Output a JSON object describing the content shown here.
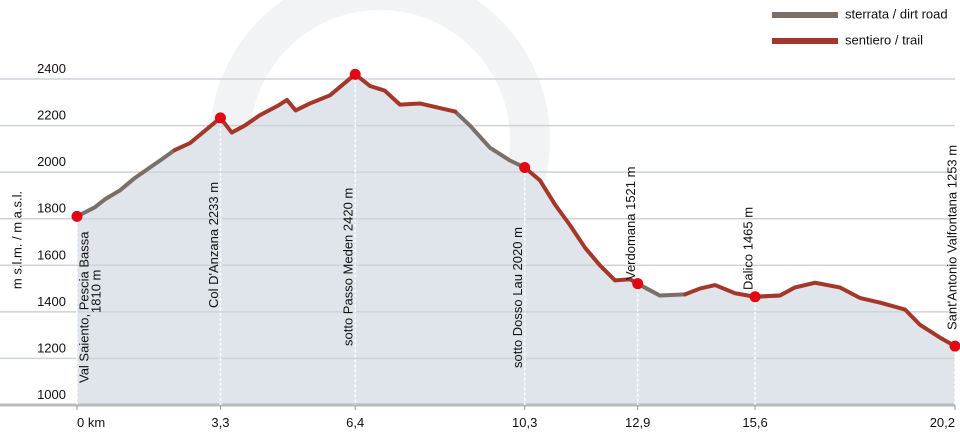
{
  "chart_data": {
    "type": "line",
    "y_axis_label": "m s.l.m. / m a.s.l.",
    "x": [
      0,
      0.41,
      0.64,
      0.99,
      1.33,
      1.91,
      2.25,
      2.6,
      3.3,
      3.56,
      3.86,
      4.21,
      4.62,
      4.83,
      5.03,
      5.36,
      5.82,
      6.4,
      6.74,
      7.08,
      7.43,
      7.89,
      8.35,
      8.7,
      9.04,
      9.5,
      9.96,
      10.3,
      10.65,
      11.0,
      11.34,
      11.69,
      12.03,
      12.38,
      12.72,
      12.9,
      13.41,
      13.99,
      14.33,
      14.68,
      15.14,
      15.6,
      16.17,
      16.52,
      16.98,
      17.55,
      18.01,
      18.47,
      19.05,
      19.39,
      19.85,
      20.2
    ],
    "series": [
      {
        "name": "sterrata / dirt road",
        "color": "#7b7068",
        "values": [
          1810,
          1849,
          1883,
          1922,
          1975,
          2050,
          2095,
          null,
          null,
          null,
          null,
          null,
          null,
          null,
          null,
          null,
          null,
          null,
          null,
          null,
          null,
          null,
          null,
          2260,
          2200,
          2105,
          2050,
          2020,
          null,
          null,
          null,
          null,
          null,
          null,
          null,
          1521,
          1470,
          1475,
          null,
          null,
          null,
          1465,
          1470,
          null,
          null,
          null,
          null,
          null,
          null,
          null,
          null,
          null
        ]
      },
      {
        "name": "sentiero / trail",
        "color": "#a5372a",
        "values": [
          null,
          null,
          null,
          null,
          null,
          null,
          2095,
          2125,
          2233,
          2170,
          2200,
          2245,
          2285,
          2310,
          2265,
          2295,
          2330,
          2420,
          2370,
          2350,
          2290,
          2295,
          2275,
          2260,
          null,
          null,
          null,
          2020,
          1965,
          1860,
          1773,
          1675,
          1600,
          1535,
          1540,
          1521,
          null,
          1475,
          1500,
          1515,
          1480,
          1465,
          1470,
          1505,
          1525,
          1505,
          1460,
          1440,
          1410,
          1345,
          1290,
          1253
        ]
      }
    ],
    "annotations": [
      {
        "label": "Val Saiento, Pescia Bassa",
        "sublabel": "1810 m",
        "x": 0,
        "y": 1810,
        "color": "#e30613"
      },
      {
        "label": "Col D'Anzana 2233 m",
        "x": 3.3,
        "y": 2233,
        "color": "#000000"
      },
      {
        "label": "sotto Passo Meden 2420 m",
        "x": 6.4,
        "y": 2420,
        "color": "#000000"
      },
      {
        "label": "sotto Dosso Lau 2020 m",
        "x": 10.3,
        "y": 2020,
        "color": "#000000"
      },
      {
        "label": "Verdomana 1521 m",
        "x": 12.9,
        "y": 1521,
        "color": "#000000"
      },
      {
        "label": "Dalico 1465 m",
        "x": 15.6,
        "y": 1465,
        "color": "#000000"
      },
      {
        "label": "Sant'Antonio Valfontana 1253 m",
        "x": 20.2,
        "y": 1253,
        "color": "#e30613"
      }
    ],
    "marker_color": "#e30613",
    "xlim": [
      0,
      20.2
    ],
    "xticks": [
      {
        "value": 0,
        "label": "0 km"
      },
      {
        "value": 3.3,
        "label": "3,3"
      },
      {
        "value": 6.4,
        "label": "6,4"
      },
      {
        "value": 10.3,
        "label": "10,3"
      },
      {
        "value": 12.9,
        "label": "12,9"
      },
      {
        "value": 15.6,
        "label": "15,6"
      },
      {
        "value": 20.2,
        "label": "20,2"
      }
    ],
    "ylim": [
      1000,
      2400
    ],
    "yticks": [
      1000,
      1200,
      1400,
      1600,
      1800,
      2000,
      2200,
      2400
    ],
    "grid": true,
    "legend": "top-right"
  }
}
